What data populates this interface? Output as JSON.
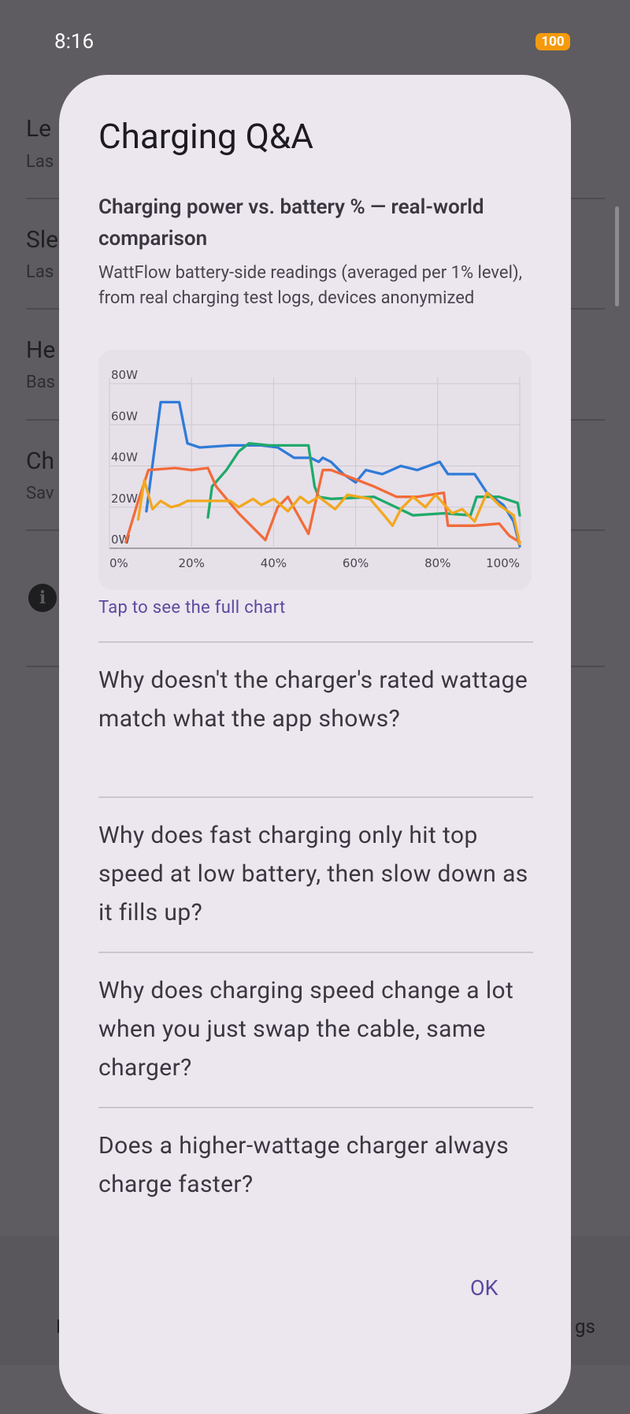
{
  "status_bar": {
    "time": "8:16",
    "battery": "100"
  },
  "background": {
    "items": [
      {
        "title": "Le",
        "subtitle": "Las"
      },
      {
        "title": "Sle",
        "subtitle": "Las"
      },
      {
        "title": "He",
        "subtitle": "Bas"
      },
      {
        "title": "Ch",
        "subtitle": "Sav"
      }
    ],
    "bottom_left": "L",
    "bottom_right": "gs"
  },
  "dialog": {
    "title": "Charging Q&A",
    "link": "Tap to see the full chart",
    "questions": [
      "Why doesn't the charger's rated wattage match what the app shows?",
      "Why does fast charging only hit top speed at low battery, then slow down as it fills up?",
      "Why does charging speed change a lot when you just swap the cable, same charger?",
      "Does a higher-wattage charger always charge faster?"
    ],
    "ok": "OK"
  },
  "chart_data": {
    "type": "line",
    "title": "Charging power vs. battery % — real-world comparison",
    "subtitle": "WattFlow battery-side readings (averaged per 1% level), from real charging test logs, devices anonymized",
    "xlim": [
      0,
      100
    ],
    "ylim": [
      0,
      80
    ],
    "xticks": [
      {
        "value": 0,
        "label": "0%"
      },
      {
        "value": 20,
        "label": "20%"
      },
      {
        "value": 40,
        "label": "40%"
      },
      {
        "value": 60,
        "label": "60%"
      },
      {
        "value": 80,
        "label": "80%"
      },
      {
        "value": 100,
        "label": "100%"
      }
    ],
    "yticks": [
      {
        "value": 0,
        "label": "0W"
      },
      {
        "value": 20,
        "label": "20W"
      },
      {
        "value": 40,
        "label": "40W"
      },
      {
        "value": 60,
        "label": "60W"
      },
      {
        "value": 80,
        "label": "80W"
      }
    ],
    "grid": true,
    "series": [
      {
        "color": "#2f7bd8",
        "x": [
          9,
          12.5,
          17,
          19,
          22,
          29.5,
          37,
          41,
          45,
          49,
          51,
          52,
          54,
          57,
          60,
          62.5,
          66.5,
          71,
          75,
          80.5,
          82.5,
          89,
          92,
          96,
          98.5,
          100
        ],
        "values": [
          18,
          71,
          71,
          51,
          49,
          50,
          50,
          49,
          44,
          44,
          42,
          44,
          42,
          36,
          32,
          38,
          36,
          40,
          38,
          42,
          36,
          36,
          27,
          21,
          13,
          1
        ]
      },
      {
        "color": "#1faa6a",
        "x": [
          24,
          25,
          28.5,
          31.5,
          34,
          39,
          48.5,
          50,
          51,
          54,
          64.5,
          74,
          81.5,
          88,
          89.5,
          95,
          99.5,
          100
        ],
        "values": [
          15,
          30,
          38,
          47,
          51,
          50,
          50,
          30,
          25,
          24,
          25,
          16,
          17,
          16,
          25,
          25,
          22,
          16
        ]
      },
      {
        "color": "#f26b3a",
        "x": [
          4,
          7,
          9.5,
          16,
          20,
          24,
          26,
          31.5,
          38,
          41,
          43.5,
          48.5,
          52,
          54,
          58,
          64.5,
          70,
          75,
          81.5,
          82.5,
          89,
          95,
          97.5,
          100
        ],
        "values": [
          3,
          23,
          38,
          39,
          38,
          39,
          30,
          17,
          4,
          20,
          25,
          7,
          38,
          38,
          35,
          30,
          25,
          25,
          27,
          11,
          11,
          12,
          6,
          3
        ]
      },
      {
        "color": "#f2a81d",
        "x": [
          7,
          8.5,
          10.5,
          12.5,
          15,
          17,
          19,
          29.5,
          31.5,
          35,
          37,
          40,
          43.5,
          46.5,
          48.5,
          51,
          55,
          58,
          63.5,
          66.5,
          69,
          71,
          74,
          77,
          79.5,
          83.5,
          86,
          89,
          92,
          95,
          98.5,
          100
        ],
        "values": [
          14,
          33,
          19,
          23,
          20,
          21,
          23,
          23,
          20,
          24,
          21,
          24,
          18,
          25,
          22,
          25,
          19,
          26,
          24,
          17,
          11,
          19,
          25,
          20,
          26,
          17,
          19,
          13,
          27,
          21,
          16,
          2
        ]
      }
    ]
  }
}
